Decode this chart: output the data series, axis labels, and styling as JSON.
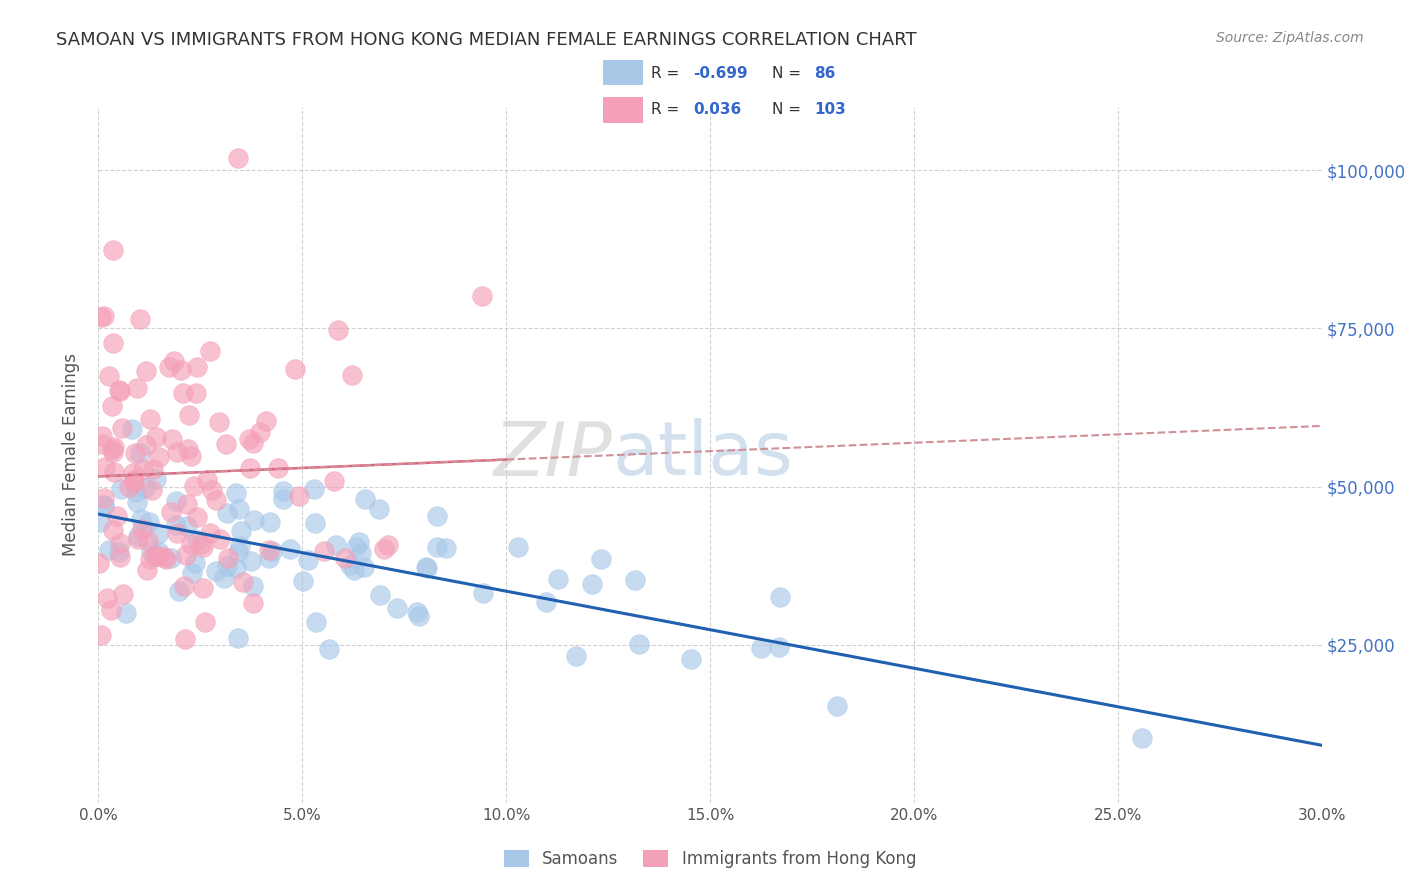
{
  "title": "SAMOAN VS IMMIGRANTS FROM HONG KONG MEDIAN FEMALE EARNINGS CORRELATION CHART",
  "source": "Source: ZipAtlas.com",
  "watermark_zip": "ZIP",
  "watermark_atlas": "atlas",
  "ylabel": "Median Female Earnings",
  "ylabel_vals": [
    25000,
    50000,
    75000,
    100000
  ],
  "xlabel_vals": [
    0.0,
    5.0,
    10.0,
    15.0,
    20.0,
    25.0,
    30.0
  ],
  "blue_R": -0.699,
  "blue_N": 86,
  "pink_R": 0.036,
  "pink_N": 103,
  "blue_label": "Samoans",
  "pink_label": "Immigrants from Hong Kong",
  "blue_color": "#a8c8e8",
  "pink_color": "#f4a0b8",
  "blue_line_color": "#2060b0",
  "pink_solid_color": "#e06080",
  "pink_dash_color": "#d09098",
  "background_color": "#ffffff",
  "grid_color": "#cccccc",
  "title_color": "#333333",
  "right_tick_color": "#4472c4",
  "legend_R_color": "#3366cc",
  "legend_N_color": "#3366cc",
  "xlim": [
    0.0,
    30.0
  ],
  "ylim": [
    0,
    110000
  ],
  "figsize": [
    14.06,
    8.92
  ],
  "dpi": 100,
  "seed": 12345
}
